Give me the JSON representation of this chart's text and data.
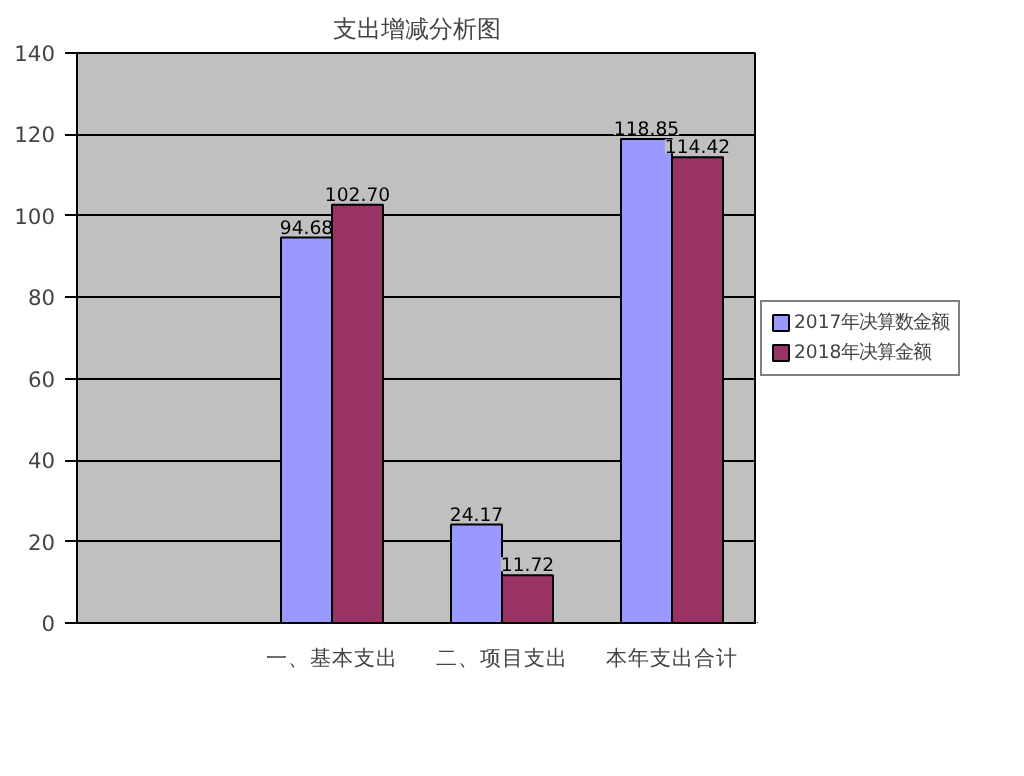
{
  "chart_data": {
    "type": "bar",
    "title": "支出增减分析图",
    "categories": [
      null,
      "一、基本支出",
      "二、项目支出",
      "本年支出合计"
    ],
    "series": [
      {
        "name": "2017年决算数金额",
        "color": "#9999ff",
        "values": [
          null,
          94.68,
          24.17,
          118.85
        ],
        "value_labels": [
          null,
          "94.68",
          "24.17",
          "118.85"
        ]
      },
      {
        "name": "2018年决算金额",
        "color": "#993366",
        "values": [
          null,
          102.7,
          11.72,
          114.42
        ],
        "value_labels": [
          null,
          "102.70",
          "11.72",
          "114.42"
        ]
      }
    ],
    "ylim": [
      0,
      140
    ],
    "yticks": [
      0,
      20,
      40,
      60,
      80,
      100,
      120,
      140
    ],
    "grid": "y",
    "legend": "right"
  }
}
